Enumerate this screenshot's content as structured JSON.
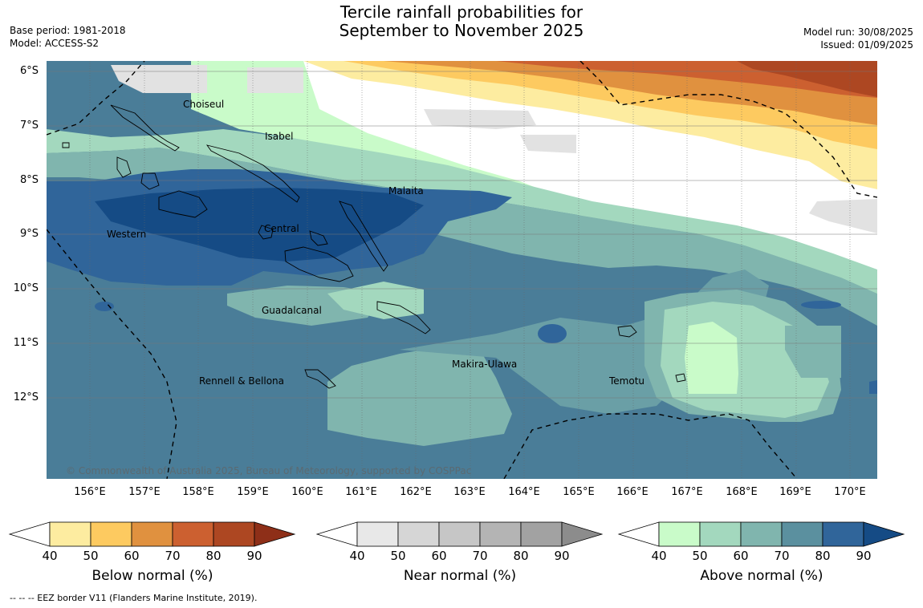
{
  "header": {
    "title_line1": "Tercile rainfall probabilities for",
    "title_line2": "September to November 2025",
    "base_period": "Base period: 1981-2018",
    "model": "Model: ACCESS-S2",
    "model_run": "Model run: 30/08/2025",
    "issued": "Issued: 01/09/2025"
  },
  "axes": {
    "lat_labels": [
      "6°S",
      "7°S",
      "8°S",
      "9°S",
      "10°S",
      "11°S",
      "12°S"
    ],
    "lon_labels": [
      "156°E",
      "157°E",
      "158°E",
      "159°E",
      "160°E",
      "161°E",
      "162°E",
      "163°E",
      "164°E",
      "165°E",
      "166°E",
      "167°E",
      "168°E",
      "169°E",
      "170°E"
    ]
  },
  "regions": {
    "choiseul": "Choiseul",
    "isabel": "Isabel",
    "malaita": "Malaita",
    "western": "Western",
    "central": "Central",
    "guadalcanal": "Guadalcanal",
    "makira": "Makira-Ulawa",
    "rennell": "Rennell & Bellona",
    "temotu": "Temotu"
  },
  "copyright": "© Commonwealth of Australia 2025, Bureau of Meteorology, supported by COSPPac",
  "colorbars": {
    "ticks": [
      "40",
      "50",
      "60",
      "70",
      "80",
      "90"
    ],
    "below": {
      "title": "Below normal (%)",
      "colors": [
        "#fdeca0",
        "#fdca60",
        "#e0913f",
        "#cc6030",
        "#ad4722",
        "#8e2f18"
      ]
    },
    "near": {
      "title": "Near normal (%)",
      "colors": [
        "#e8e8e8",
        "#d6d6d6",
        "#c6c6c6",
        "#b4b4b4",
        "#a2a2a2",
        "#8c8c8c"
      ]
    },
    "above": {
      "title": "Above normal (%)",
      "colors": [
        "#c9fbc9",
        "#a3d8be",
        "#80b5ae",
        "#5b909f",
        "#30659a",
        "#154b85"
      ]
    }
  },
  "eez_note": "--  --  -- EEZ border V11 (Flanders Marine Institute, 2019)."
}
